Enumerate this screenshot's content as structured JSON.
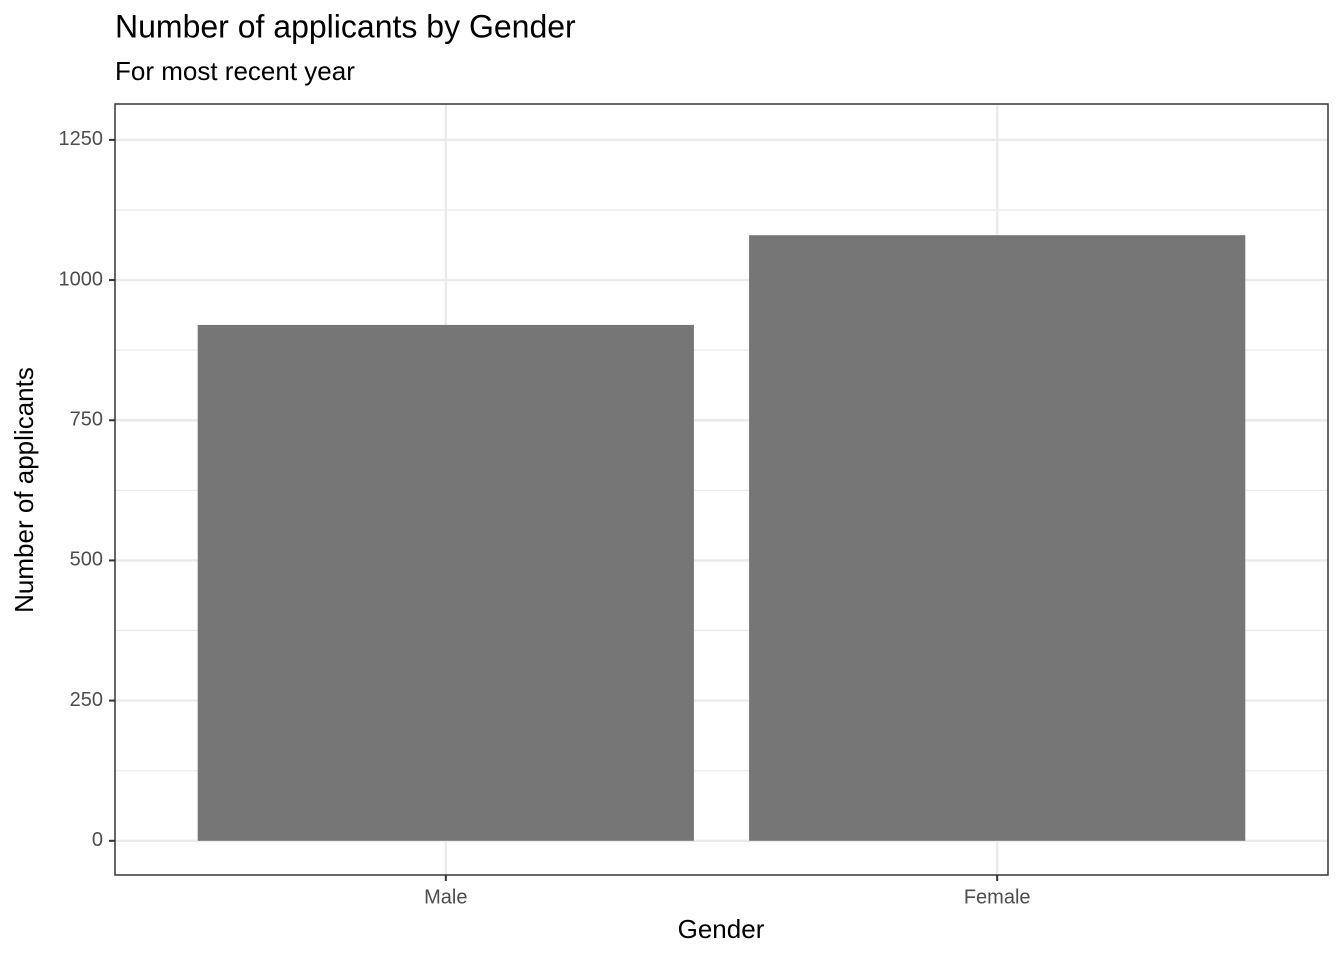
{
  "chart_data": {
    "type": "bar",
    "title": "Number of applicants by Gender",
    "subtitle": "For most recent year",
    "x_label": "Gender",
    "y_label": "Number of applicants",
    "categories": [
      "Male",
      "Female"
    ],
    "values": [
      920,
      1080
    ],
    "color": "#767676",
    "ylim": [
      -61,
      1314
    ],
    "yticks": [
      0,
      250,
      500,
      750,
      1000,
      1250
    ],
    "grid": true
  }
}
